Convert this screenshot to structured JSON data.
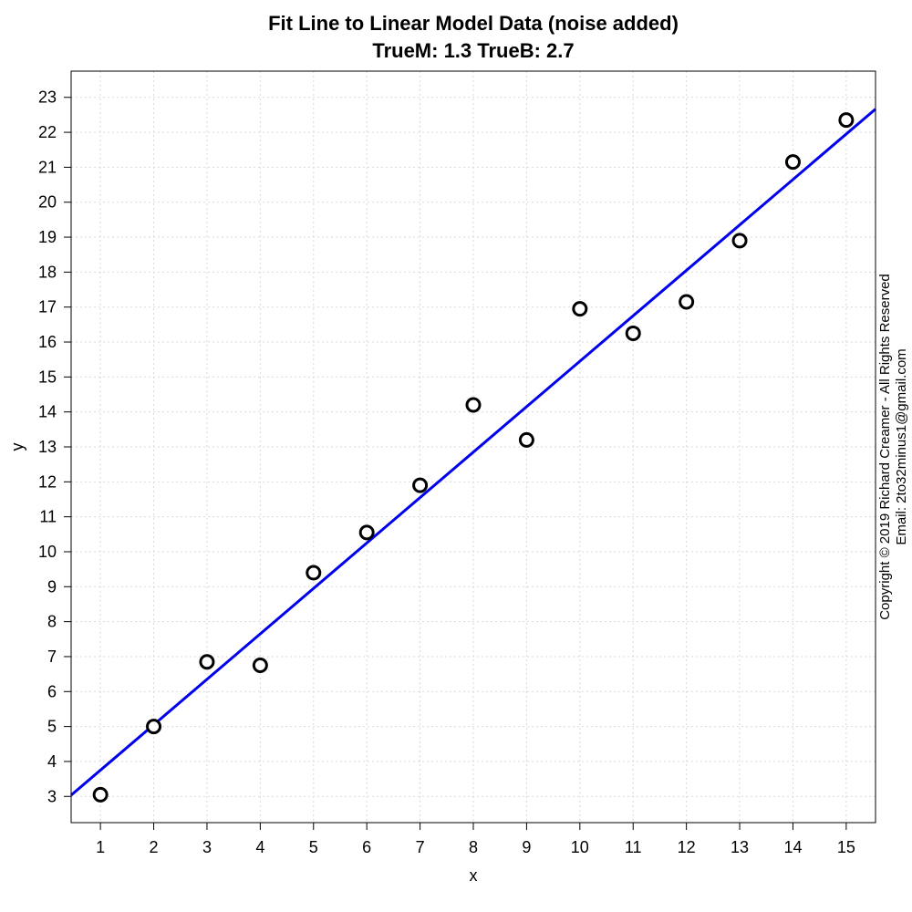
{
  "chart_data": {
    "type": "scatter",
    "title": "Fit Line to Linear Model Data (noise added)",
    "subtitle": "TrueM: 1.3  TrueB: 2.7",
    "xlabel": "x",
    "ylabel": "y",
    "xlim": [
      0.45,
      15.55
    ],
    "ylim": [
      2.25,
      23.75
    ],
    "x_ticks": [
      1,
      2,
      3,
      4,
      5,
      6,
      7,
      8,
      9,
      10,
      11,
      12,
      13,
      14,
      15
    ],
    "y_ticks": [
      3,
      4,
      5,
      6,
      7,
      8,
      9,
      10,
      11,
      12,
      13,
      14,
      15,
      16,
      17,
      18,
      19,
      20,
      21,
      22,
      23
    ],
    "grid": true,
    "series": [
      {
        "x": [
          1,
          2,
          3,
          4,
          5,
          6,
          7,
          8,
          9,
          10,
          11,
          12,
          13,
          14,
          15
        ],
        "y": [
          3.05,
          5.0,
          6.85,
          6.75,
          9.4,
          10.55,
          11.9,
          14.2,
          13.2,
          16.95,
          16.25,
          17.15,
          18.9,
          21.15,
          22.35
        ]
      }
    ],
    "fit_line": {
      "slope": 1.3,
      "intercept": 2.45,
      "color": "#0000ee"
    },
    "point_style": {
      "stroke": "#000000",
      "fill": "#ffffff"
    }
  },
  "side_note": {
    "line1": "Copyright © 2019 Richard Creamer - All Rights Reserved",
    "line2": "Email: 2to32minus1@gmail.com"
  }
}
